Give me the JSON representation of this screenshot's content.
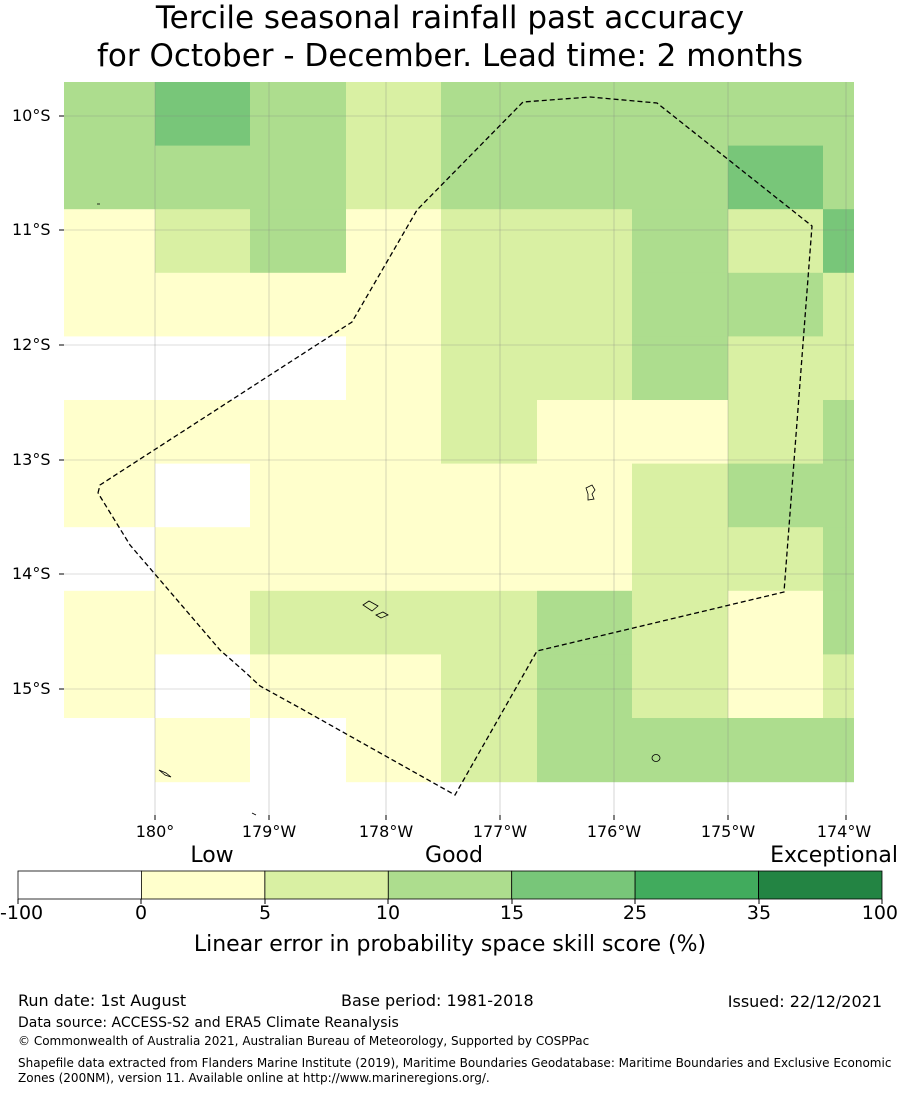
{
  "title": {
    "line1": "Tercile seasonal rainfall past accuracy",
    "line2": "for October - December. Lead time: 2 months"
  },
  "map": {
    "lat_labels": [
      "10°S",
      "11°S",
      "12°S",
      "13°S",
      "14°S",
      "15°S"
    ],
    "lon_labels": [
      "180°",
      "179°W",
      "178°W",
      "177°W",
      "176°W",
      "175°W",
      "174°W"
    ],
    "skill_grid": [
      [
        10,
        15,
        10,
        5,
        10,
        10,
        10,
        10,
        10
      ],
      [
        10,
        10,
        10,
        5,
        10,
        10,
        10,
        15,
        10
      ],
      [
        0,
        5,
        10,
        0,
        5,
        5,
        10,
        5,
        15
      ],
      [
        0,
        0,
        0,
        0,
        5,
        5,
        10,
        10,
        5
      ],
      [
        -100,
        -100,
        -100,
        0,
        5,
        5,
        10,
        5,
        5
      ],
      [
        0,
        0,
        0,
        0,
        5,
        0,
        0,
        5,
        10
      ],
      [
        0,
        -100,
        0,
        0,
        0,
        0,
        5,
        10,
        10
      ],
      [
        -100,
        0,
        0,
        0,
        0,
        0,
        5,
        5,
        10
      ],
      [
        0,
        0,
        5,
        5,
        5,
        10,
        5,
        0,
        10
      ],
      [
        0,
        -100,
        0,
        0,
        5,
        10,
        5,
        0,
        5
      ],
      [
        -100,
        0,
        -100,
        0,
        5,
        10,
        10,
        10,
        10
      ]
    ],
    "colors": {
      "band_neg100_0": "#ffffff",
      "band_0_5": "#ffffcc",
      "band_5_10": "#d9f0a3",
      "band_10_15": "#addd8e",
      "band_15_25": "#78c679",
      "band_25_35": "#41ab5d",
      "band_35_100": "#238443"
    }
  },
  "legend": {
    "category_low": "Low",
    "category_good": "Good",
    "category_exceptional": "Exceptional",
    "ticks": [
      "-100",
      "0",
      "5",
      "10",
      "15",
      "25",
      "35",
      "100"
    ],
    "colors": [
      "#ffffff",
      "#ffffcc",
      "#d9f0a3",
      "#addd8e",
      "#78c679",
      "#41ab5d",
      "#238443"
    ],
    "label": "Linear error in probability space skill score (%)"
  },
  "footer": {
    "run_date": "Run date: 1st August",
    "base_period": "Base period: 1981-2018",
    "issued": "Issued: 22/12/2021",
    "data_source": "Data source: ACCESS-S2 and ERA5 Climate Reanalysis",
    "copyright": "© Commonwealth of Australia 2021, Australian Bureau of Meteorology, Supported by COSPPac",
    "shapefile": "Shapefile data extracted from Flanders Marine Institute (2019), Maritime Boundaries Geodatabase: Maritime Boundaries and Exclusive Economic Zones (200NM), version 11. Available online at http://www.marineregions.org/."
  }
}
